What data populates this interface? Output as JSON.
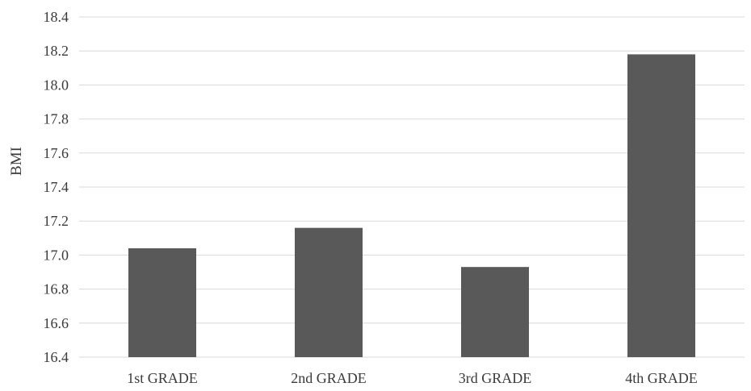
{
  "chart_data": {
    "type": "bar",
    "title": "",
    "xlabel": "",
    "ylabel": "BMI",
    "categories": [
      "1st GRADE",
      "2nd GRADE",
      "3rd GRADE",
      "4th GRADE"
    ],
    "values": [
      17.04,
      17.16,
      16.93,
      18.18
    ],
    "ylim": [
      16.4,
      18.4
    ],
    "yticks": [
      "16.4",
      "16.6",
      "16.8",
      "17.0",
      "17.2",
      "17.4",
      "17.6",
      "17.8",
      "18.0",
      "18.2",
      "18.4"
    ],
    "grid": true,
    "legend": "none",
    "bar_color": "#595959",
    "grid_color": "#d9d9d9"
  }
}
